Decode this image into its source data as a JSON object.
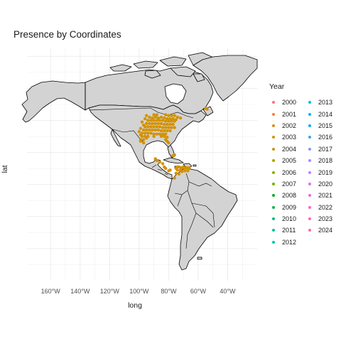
{
  "chart_data": {
    "type": "scatter",
    "title": "Presence by Coordinates",
    "xlabel": "long",
    "ylabel": "lat",
    "x_ticks": [
      "160°W",
      "140°W",
      "120°W",
      "100°W",
      "80°W",
      "60°W",
      "40°W"
    ],
    "x_tick_values": [
      -160,
      -140,
      -120,
      -100,
      -80,
      -60,
      -40
    ],
    "xlim": [
      -176,
      -20
    ],
    "ylim": [
      -60,
      85
    ],
    "grid": true,
    "legend": {
      "title": "Year",
      "placement": "right",
      "entries": [
        {
          "name": "2000",
          "color": "#F8766D"
        },
        {
          "name": "2001",
          "color": "#EE8043"
        },
        {
          "name": "2002",
          "color": "#E38900"
        },
        {
          "name": "2003",
          "color": "#D39200"
        },
        {
          "name": "2004",
          "color": "#C09B00"
        },
        {
          "name": "2005",
          "color": "#AAA400"
        },
        {
          "name": "2006",
          "color": "#8FAA00"
        },
        {
          "name": "2007",
          "color": "#6CB100"
        },
        {
          "name": "2008",
          "color": "#00B51A"
        },
        {
          "name": "2009",
          "color": "#00B94E"
        },
        {
          "name": "2010",
          "color": "#00BC7A"
        },
        {
          "name": "2011",
          "color": "#00BE9C"
        },
        {
          "name": "2012",
          "color": "#00BFBA"
        },
        {
          "name": "2013",
          "color": "#00BCD8"
        },
        {
          "name": "2014",
          "color": "#00B6EC"
        },
        {
          "name": "2015",
          "color": "#00ADFA"
        },
        {
          "name": "2016",
          "color": "#35A2FF"
        },
        {
          "name": "2017",
          "color": "#7F96FF"
        },
        {
          "name": "2018",
          "color": "#A78AFF"
        },
        {
          "name": "2019",
          "color": "#C77CFF"
        },
        {
          "name": "2020",
          "color": "#E170F5"
        },
        {
          "name": "2021",
          "color": "#F265E7"
        },
        {
          "name": "2022",
          "color": "#FD61D1"
        },
        {
          "name": "2023",
          "color": "#FF64B2"
        },
        {
          "name": "2024",
          "color": "#FF6C90"
        }
      ]
    },
    "series": [
      {
        "name": "2003",
        "color": "#D39200",
        "points": [
          [
            -93,
            42
          ],
          [
            -91,
            41.5
          ],
          [
            -89,
            42
          ],
          [
            -87,
            41.5
          ],
          [
            -85,
            42
          ],
          [
            -83,
            41.5
          ],
          [
            -81,
            41
          ],
          [
            -79,
            41
          ],
          [
            -77,
            41
          ],
          [
            -75,
            40.5
          ],
          [
            -94,
            40
          ],
          [
            -92,
            40
          ],
          [
            -90,
            40
          ],
          [
            -88,
            40
          ],
          [
            -86,
            40
          ],
          [
            -84,
            40
          ],
          [
            -82,
            39.5
          ],
          [
            -80,
            39.5
          ],
          [
            -78,
            39.5
          ],
          [
            -76,
            39.5
          ],
          [
            -95,
            38
          ],
          [
            -93,
            38
          ],
          [
            -91,
            38
          ],
          [
            -89,
            38
          ],
          [
            -87,
            38
          ],
          [
            -85,
            38
          ],
          [
            -83,
            37.5
          ],
          [
            -81,
            37.5
          ],
          [
            -79,
            37.5
          ],
          [
            -77,
            37.5
          ],
          [
            -96,
            36
          ],
          [
            -94,
            36
          ],
          [
            -92,
            36
          ],
          [
            -90,
            36
          ],
          [
            -88,
            36
          ],
          [
            -86,
            36
          ],
          [
            -84,
            35.5
          ],
          [
            -82,
            35.5
          ],
          [
            -80,
            35.5
          ],
          [
            -78,
            35.5
          ],
          [
            -76,
            35.5
          ],
          [
            -97,
            34
          ],
          [
            -95,
            34
          ],
          [
            -93,
            34
          ],
          [
            -91,
            34
          ],
          [
            -89,
            34
          ],
          [
            -87,
            34
          ],
          [
            -85,
            33.5
          ],
          [
            -83,
            33.5
          ],
          [
            -81,
            33.5
          ],
          [
            -79,
            33.5
          ],
          [
            -98,
            32
          ],
          [
            -96,
            32
          ],
          [
            -94,
            32
          ],
          [
            -92,
            32
          ],
          [
            -90,
            31.5
          ],
          [
            -88,
            31.5
          ],
          [
            -86,
            31.5
          ],
          [
            -84,
            31.5
          ],
          [
            -82,
            31.5
          ],
          [
            -98,
            30
          ],
          [
            -96,
            30
          ],
          [
            -94,
            30
          ],
          [
            -90,
            30
          ],
          [
            -85,
            30
          ],
          [
            -83,
            30
          ],
          [
            -81,
            29.5
          ],
          [
            -99,
            28
          ],
          [
            -97,
            28
          ],
          [
            -82,
            28
          ],
          [
            -81,
            27
          ],
          [
            -80,
            26
          ],
          [
            -97,
            26
          ],
          [
            -99,
            27
          ],
          [
            -95,
            29
          ],
          [
            -99,
            31
          ],
          [
            -100,
            33
          ],
          [
            -99,
            35
          ],
          [
            -97,
            37
          ],
          [
            -98,
            39
          ],
          [
            -96,
            41
          ],
          [
            -95,
            43
          ],
          [
            -80,
            43
          ],
          [
            -78,
            43
          ],
          [
            -76,
            43
          ],
          [
            -74,
            42
          ],
          [
            -72,
            41.5
          ],
          [
            -82,
            43.5
          ],
          [
            -88,
            43.5
          ],
          [
            -90,
            43.5
          ],
          [
            -55,
            47.5
          ],
          [
            -54,
            47
          ],
          [
            -77,
            18
          ],
          [
            -76,
            18.5
          ],
          [
            -89,
            16
          ],
          [
            -88,
            15
          ],
          [
            -86,
            14
          ],
          [
            -84,
            13
          ],
          [
            -83,
            11
          ],
          [
            -82,
            10
          ],
          [
            -79,
            9
          ],
          [
            -80,
            8.5
          ],
          [
            -75,
            10
          ],
          [
            -74,
            11
          ],
          [
            -73,
            11
          ],
          [
            -72,
            10.5
          ],
          [
            -71,
            10.5
          ],
          [
            -70,
            11
          ],
          [
            -69,
            10
          ],
          [
            -68,
            10.5
          ],
          [
            -67,
            10
          ],
          [
            -66,
            10.5
          ],
          [
            -74,
            9
          ],
          [
            -72,
            9
          ],
          [
            -71,
            8
          ],
          [
            -69,
            8.5
          ],
          [
            -67,
            8.5
          ],
          [
            -75,
            7
          ],
          [
            -73,
            6.5
          ],
          [
            -76,
            4
          ]
        ]
      }
    ]
  }
}
